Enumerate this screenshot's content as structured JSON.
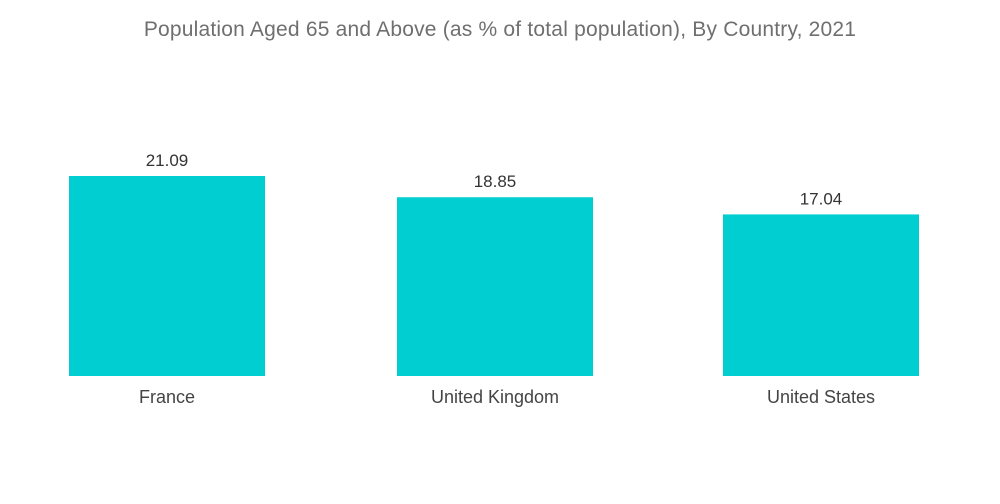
{
  "chart_data": {
    "type": "bar",
    "title": "Population Aged 65 and Above (as % of total population), By Country, 2021",
    "categories": [
      "France",
      "United Kingdom",
      "United States"
    ],
    "values": [
      21.09,
      18.85,
      17.04
    ],
    "value_labels": [
      "21.09",
      "18.85",
      "17.04"
    ],
    "xlabel": "",
    "ylabel": "",
    "ylim": [
      0,
      21.09
    ],
    "grid": false,
    "legend": "none",
    "bar_color": "#00ced1"
  }
}
